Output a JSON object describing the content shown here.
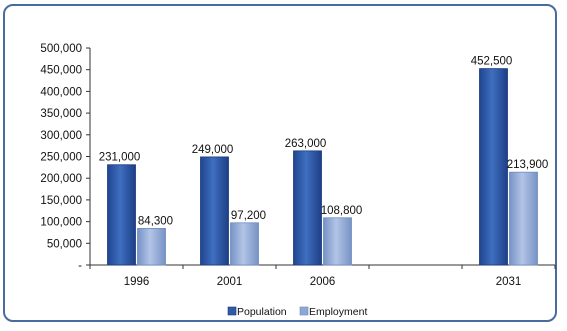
{
  "chart_data": {
    "type": "bar",
    "categories": [
      "1996",
      "2001",
      "2006",
      "",
      "2031"
    ],
    "series": [
      {
        "name": "Population",
        "color": "#2f5ba6",
        "values": [
          231000,
          249000,
          263000,
          null,
          452500
        ],
        "labels": [
          "231,000",
          "249,000",
          "263,000",
          "",
          "452,500"
        ]
      },
      {
        "name": "Employment",
        "color": "#8ea7d3",
        "values": [
          84300,
          97200,
          108800,
          null,
          213900
        ],
        "labels": [
          "84,300",
          "97,200",
          "108,800",
          "",
          "213,900"
        ]
      }
    ],
    "ylim": [
      0,
      500000
    ],
    "yticks": [
      0,
      50000,
      100000,
      150000,
      200000,
      250000,
      300000,
      350000,
      400000,
      450000,
      500000
    ],
    "ytick_labels": [
      "-",
      "50,000",
      "100,000",
      "150,000",
      "200,000",
      "250,000",
      "300,000",
      "350,000",
      "400,000",
      "450,000",
      "500,000"
    ],
    "grid": false,
    "legend_position": "bottom-center"
  }
}
